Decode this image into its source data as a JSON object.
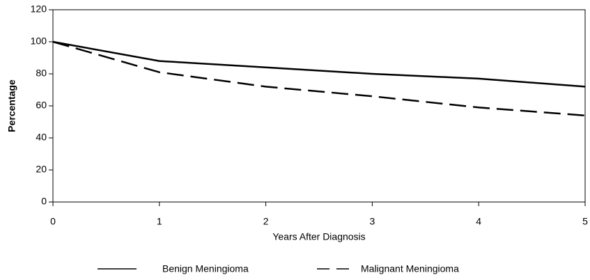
{
  "chart_data": {
    "type": "line",
    "x": [
      0,
      1,
      2,
      3,
      4,
      5
    ],
    "series": [
      {
        "name": "Benign Meningioma",
        "color": "#000000",
        "dash": "solid",
        "values": [
          100,
          88,
          84,
          80,
          77,
          72
        ]
      },
      {
        "name": "Malignant Meningioma",
        "color": "#000000",
        "dash": "dashed",
        "values": [
          100,
          81,
          72,
          66,
          59,
          54
        ]
      }
    ],
    "x_label": "Years After Diagnosis",
    "y_label": "Percentage",
    "xlim": [
      0,
      5
    ],
    "xticks": [
      0,
      1,
      2,
      3,
      4,
      5
    ],
    "ylim": [
      0,
      120
    ],
    "yticks": [
      0,
      20,
      40,
      60,
      80,
      100,
      120
    ],
    "legend": "bottom"
  }
}
